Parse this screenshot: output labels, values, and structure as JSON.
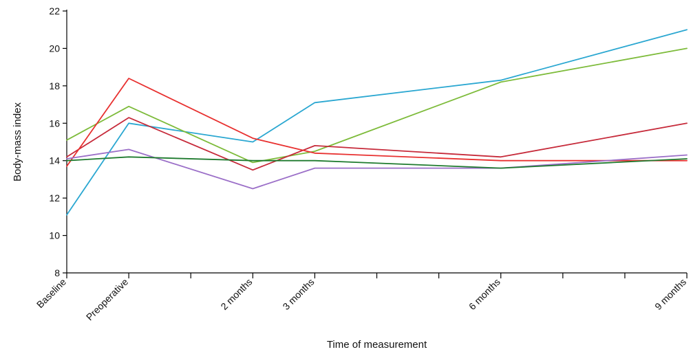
{
  "chart_data": {
    "type": "line",
    "title": "",
    "xlabel": "Time of measurement",
    "ylabel": "Body-mass index",
    "x_months": [
      0,
      1,
      3,
      4,
      7,
      10
    ],
    "categories": [
      "Baseline",
      "Preoperative",
      "2 months",
      "3 months",
      "6 months",
      "9 months"
    ],
    "minor_tick_months": [
      2,
      5,
      6,
      8,
      9
    ],
    "ylim": [
      8,
      22
    ],
    "yticks": [
      8,
      10,
      12,
      14,
      16,
      18,
      20,
      22
    ],
    "grid": false,
    "series": [
      {
        "color": "#2aa7d1",
        "values": [
          11.1,
          16.0,
          15.0,
          17.1,
          18.3,
          21.0
        ]
      },
      {
        "color": "#7dbb3a",
        "values": [
          15.1,
          16.9,
          13.9,
          14.5,
          18.2,
          20.0
        ]
      },
      {
        "color": "#c62a3a",
        "values": [
          14.2,
          16.3,
          13.5,
          14.8,
          14.2,
          16.0
        ]
      },
      {
        "color": "#e8302f",
        "values": [
          13.7,
          18.4,
          15.2,
          14.4,
          14.0,
          14.0
        ]
      },
      {
        "color": "#9b6fc8",
        "values": [
          14.1,
          14.6,
          12.5,
          13.6,
          13.6,
          14.3
        ]
      },
      {
        "color": "#1e7a2e",
        "values": [
          14.0,
          14.2,
          14.0,
          14.0,
          13.6,
          14.1
        ]
      }
    ]
  }
}
